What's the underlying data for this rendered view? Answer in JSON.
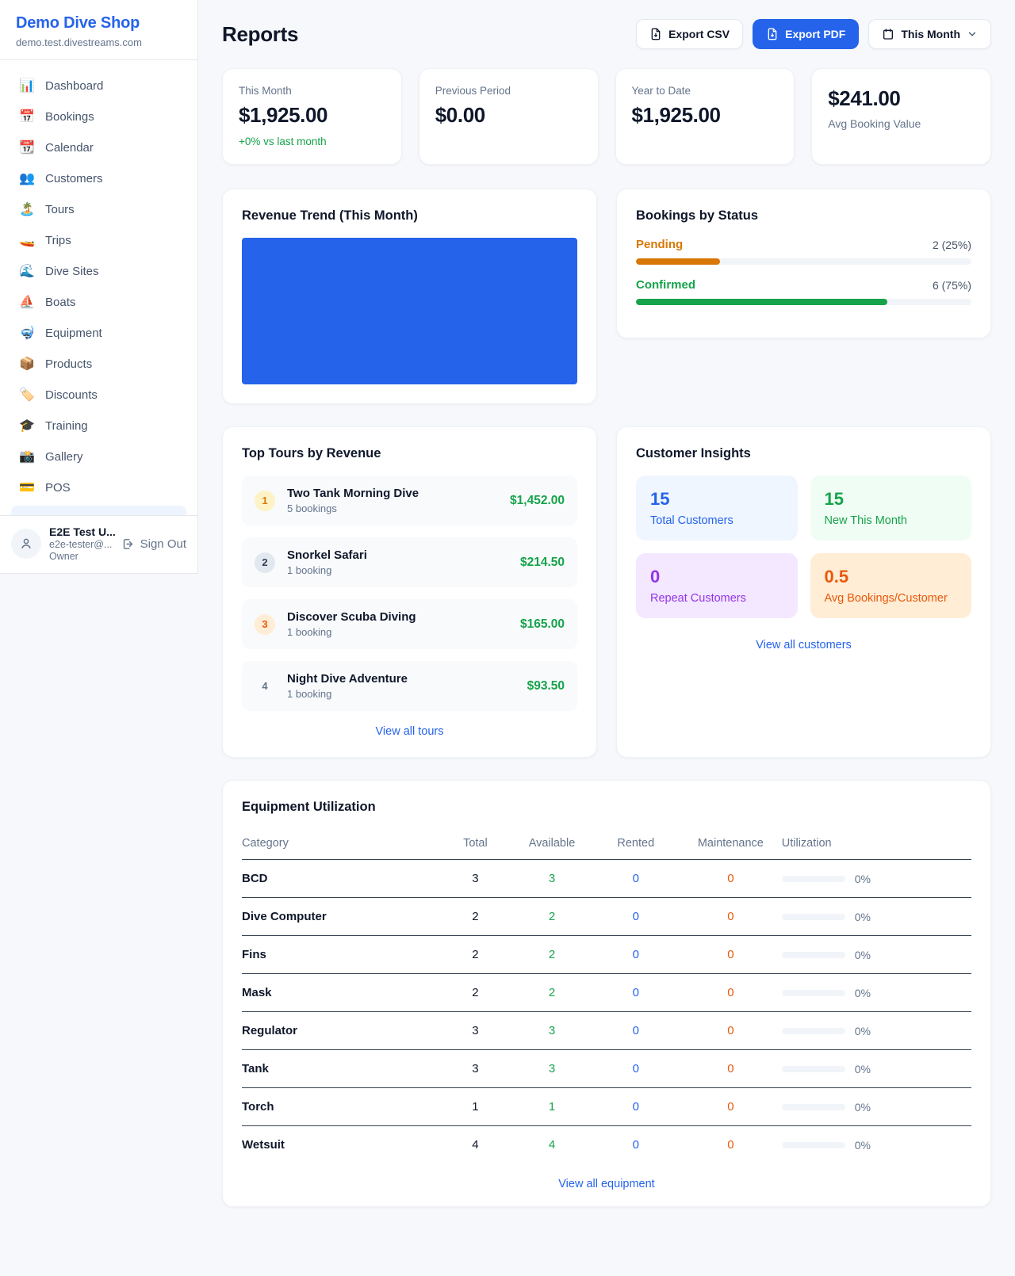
{
  "sidebar": {
    "title": "Demo Dive Shop",
    "subtitle": "demo.test.divestreams.com",
    "items": [
      {
        "icon": "📊",
        "label": "Dashboard"
      },
      {
        "icon": "📅",
        "label": "Bookings"
      },
      {
        "icon": "📆",
        "label": "Calendar"
      },
      {
        "icon": "👥",
        "label": "Customers"
      },
      {
        "icon": "🏝️",
        "label": "Tours"
      },
      {
        "icon": "🚤",
        "label": "Trips"
      },
      {
        "icon": "🌊",
        "label": "Dive Sites"
      },
      {
        "icon": "⛵",
        "label": "Boats"
      },
      {
        "icon": "🤿",
        "label": "Equipment"
      },
      {
        "icon": "📦",
        "label": "Products"
      },
      {
        "icon": "🏷️",
        "label": "Discounts"
      },
      {
        "icon": "🎓",
        "label": "Training"
      },
      {
        "icon": "📸",
        "label": "Gallery"
      },
      {
        "icon": "💳",
        "label": "POS"
      }
    ],
    "user": {
      "name": "E2E Test U...",
      "email": "e2e-tester@...",
      "role": "Owner",
      "sign_out": "Sign Out"
    }
  },
  "header": {
    "title": "Reports",
    "export_csv": "Export CSV",
    "export_pdf": "Export PDF",
    "period": "This Month"
  },
  "stats": [
    {
      "label": "This Month",
      "value": "$1,925.00",
      "delta": "+0% vs last month"
    },
    {
      "label": "Previous Period",
      "value": "$0.00"
    },
    {
      "label": "Year to Date",
      "value": "$1,925.00"
    },
    {
      "label": "Avg Booking Value",
      "value": "$241.00"
    }
  ],
  "revenue_trend": {
    "title": "Revenue Trend (This Month)",
    "bar_color": "#2563eb"
  },
  "bookings_by_status": {
    "title": "Bookings by Status",
    "rows": [
      {
        "label": "Pending",
        "count": "2 (25%)",
        "pct": 25,
        "color": "#d97706"
      },
      {
        "label": "Confirmed",
        "count": "6 (75%)",
        "pct": 75,
        "color": "#16a34a"
      }
    ]
  },
  "top_tours": {
    "title": "Top Tours by Revenue",
    "items": [
      {
        "rank": "1",
        "name": "Two Tank Morning Dive",
        "bookings": "5 bookings",
        "revenue": "$1,452.00"
      },
      {
        "rank": "2",
        "name": "Snorkel Safari",
        "bookings": "1 booking",
        "revenue": "$214.50"
      },
      {
        "rank": "3",
        "name": "Discover Scuba Diving",
        "bookings": "1 booking",
        "revenue": "$165.00"
      },
      {
        "rank": "4",
        "name": "Night Dive Adventure",
        "bookings": "1 booking",
        "revenue": "$93.50"
      }
    ],
    "view_all": "View all tours"
  },
  "customer_insights": {
    "title": "Customer Insights",
    "boxes": [
      {
        "value": "15",
        "label": "Total Customers",
        "color": "#2563eb",
        "bg": "#eff6ff"
      },
      {
        "value": "15",
        "label": "New This Month",
        "color": "#16a34a",
        "bg": "#f0fdf4"
      },
      {
        "value": "0",
        "label": "Repeat Customers",
        "color": "#9333ea",
        "bg": "#f3e8ff"
      },
      {
        "value": "0.5",
        "label": "Avg Bookings/Customer",
        "color": "#ea580c",
        "bg": "#ffedd5"
      }
    ],
    "view_all": "View all customers"
  },
  "equipment": {
    "title": "Equipment Utilization",
    "columns": [
      "Category",
      "Total",
      "Available",
      "Rented",
      "Maintenance",
      "Utilization"
    ],
    "rows": [
      {
        "category": "BCD",
        "total": "3",
        "available": "3",
        "rented": "0",
        "maintenance": "0",
        "utilization": "0%"
      },
      {
        "category": "Dive Computer",
        "total": "2",
        "available": "2",
        "rented": "0",
        "maintenance": "0",
        "utilization": "0%"
      },
      {
        "category": "Fins",
        "total": "2",
        "available": "2",
        "rented": "0",
        "maintenance": "0",
        "utilization": "0%"
      },
      {
        "category": "Mask",
        "total": "2",
        "available": "2",
        "rented": "0",
        "maintenance": "0",
        "utilization": "0%"
      },
      {
        "category": "Regulator",
        "total": "3",
        "available": "3",
        "rented": "0",
        "maintenance": "0",
        "utilization": "0%"
      },
      {
        "category": "Tank",
        "total": "3",
        "available": "3",
        "rented": "0",
        "maintenance": "0",
        "utilization": "0%"
      },
      {
        "category": "Torch",
        "total": "1",
        "available": "1",
        "rented": "0",
        "maintenance": "0",
        "utilization": "0%"
      },
      {
        "category": "Wetsuit",
        "total": "4",
        "available": "4",
        "rented": "0",
        "maintenance": "0",
        "utilization": "0%"
      }
    ],
    "view_all": "View all equipment"
  }
}
